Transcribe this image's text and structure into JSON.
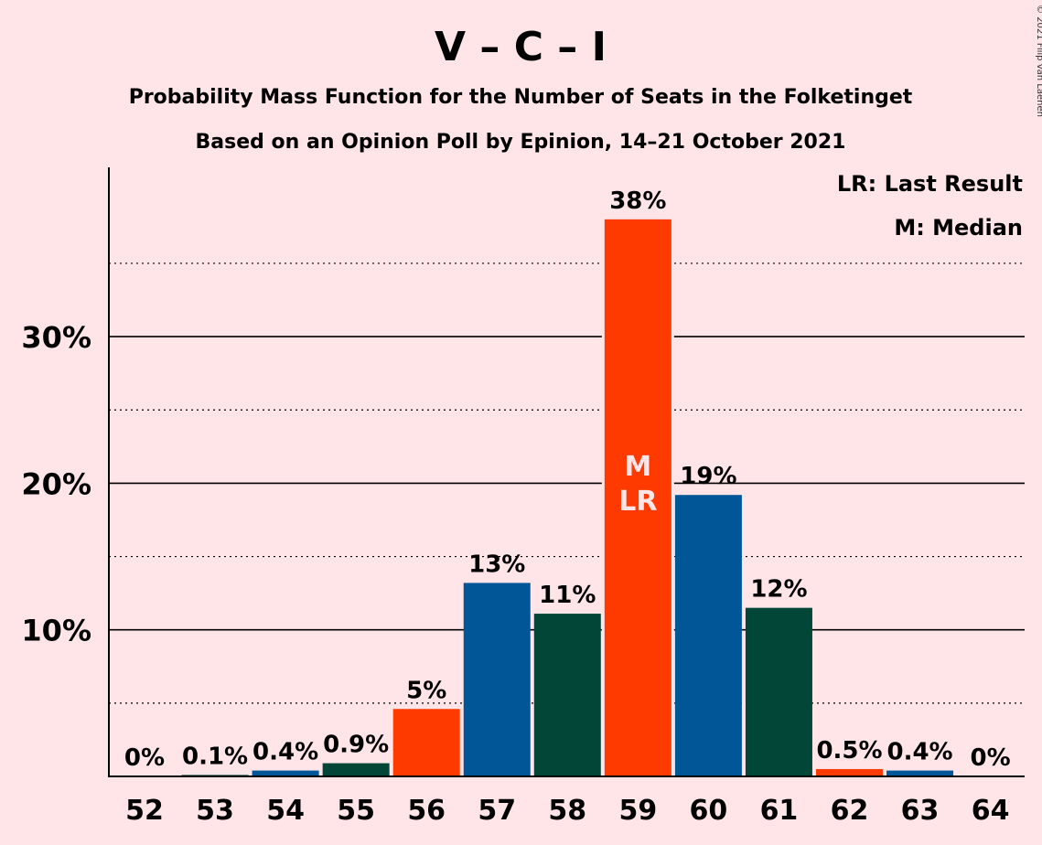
{
  "title": "V – C – I",
  "subtitle1": "Probability Mass Function for the Number of Seats in the Folketinget",
  "subtitle2": "Based on an Opinion Poll by Epinion, 14–21 October 2021",
  "copyright": "© 2021 Filip van Laenen",
  "legend": {
    "lr": "LR: Last Result",
    "m": "M: Median"
  },
  "colors": {
    "background": "#FFE4E8",
    "blue": "#005696",
    "dark_green": "#014637",
    "red_orange": "#FF3A00"
  },
  "chart_data": {
    "type": "bar",
    "xlabel": "",
    "ylabel": "",
    "ylim": [
      0,
      41.5
    ],
    "y_ticks": [
      10,
      20,
      30
    ],
    "y_tick_labels": [
      "10%",
      "20%",
      "30%"
    ],
    "y_minor_gridlines": [
      5,
      15,
      25,
      35
    ],
    "categories": [
      "52",
      "53",
      "54",
      "55",
      "56",
      "57",
      "58",
      "59",
      "60",
      "61",
      "62",
      "63",
      "64"
    ],
    "values": [
      0,
      0.1,
      0.4,
      0.9,
      4.6,
      13.2,
      11.1,
      38.0,
      19.2,
      11.5,
      0.5,
      0.4,
      0
    ],
    "data_labels": [
      "0%",
      "0.1%",
      "0.4%",
      "0.9%",
      "5%",
      "13%",
      "11%",
      "38%",
      "19%",
      "12%",
      "0.5%",
      "0.4%",
      "0%"
    ],
    "bar_colors": [
      "#005696",
      "#014637",
      "#005696",
      "#014637",
      "#FF3A00",
      "#005696",
      "#014637",
      "#FF3A00",
      "#005696",
      "#014637",
      "#FF3A00",
      "#005696",
      "#014637"
    ],
    "median_seat": "59",
    "last_result_seat": "59",
    "median_label": "M",
    "last_result_label": "LR",
    "grid": true,
    "legend_position": "top-right"
  }
}
